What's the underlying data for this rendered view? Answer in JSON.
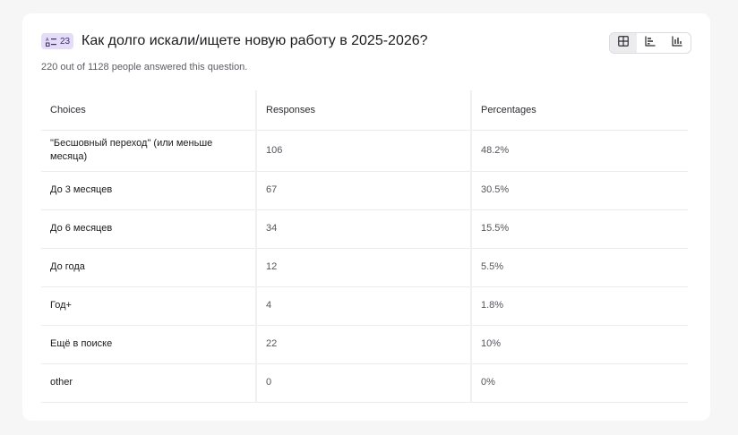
{
  "question": {
    "badge_number": "23",
    "title": "Как долго искали/ищете новую работу в 2025-2026?",
    "subtitle": "220 out of 1128 people answered this question."
  },
  "view_toggle": {
    "options": [
      "table-icon",
      "horizontal-bar-chart-icon",
      "vertical-bar-chart-icon"
    ],
    "selected": "table-icon"
  },
  "table": {
    "headers": [
      "Choices",
      "Responses",
      "Percentages"
    ],
    "rows": [
      {
        "choice": "\"Бесшовный переход\" (или меньше месяца)",
        "responses": "106",
        "percentage": "48.2%"
      },
      {
        "choice": "До 3 месяцев",
        "responses": "67",
        "percentage": "30.5%"
      },
      {
        "choice": "До 6 месяцев",
        "responses": "34",
        "percentage": "15.5%"
      },
      {
        "choice": "До года",
        "responses": "12",
        "percentage": "5.5%"
      },
      {
        "choice": "Год+",
        "responses": "4",
        "percentage": "1.8%"
      },
      {
        "choice": "Ещё в поиске",
        "responses": "22",
        "percentage": "10%"
      },
      {
        "choice": "other",
        "responses": "0",
        "percentage": "0%"
      }
    ]
  },
  "colors": {
    "badge_bg": "#e4dcf8",
    "page_bg": "#f6f6f7",
    "card_bg": "#ffffff"
  }
}
